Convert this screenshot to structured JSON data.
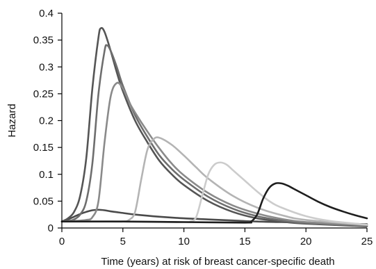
{
  "chart_data": {
    "type": "line",
    "title": "",
    "xlabel": "Time (years) at risk of breast cancer-specific death",
    "ylabel": "Hazard",
    "xlim": [
      0,
      25
    ],
    "ylim": [
      0,
      0.4
    ],
    "x_ticks": [
      {
        "value": 0,
        "label": "0"
      },
      {
        "value": 5,
        "label": "5"
      },
      {
        "value": 10,
        "label": "10"
      },
      {
        "value": 15,
        "label": "15"
      },
      {
        "value": 20,
        "label": "20"
      },
      {
        "value": 25,
        "label": "25"
      }
    ],
    "y_ticks": [
      {
        "value": 0,
        "label": "0"
      },
      {
        "value": 0.05,
        "label": "0.05"
      },
      {
        "value": 0.1,
        "label": "0.1"
      },
      {
        "value": 0.15,
        "label": "0.15"
      },
      {
        "value": 0.2,
        "label": "0.2"
      },
      {
        "value": 0.25,
        "label": "0.25"
      },
      {
        "value": 0.3,
        "label": "0.3"
      },
      {
        "value": 0.35,
        "label": "0.35"
      },
      {
        "value": 0.4,
        "label": "0.4"
      }
    ],
    "grid": false,
    "legend": "none",
    "series": [
      {
        "color": "#4a4a4a",
        "x": [
          0,
          0.5,
          1,
          1.5,
          2,
          2.5,
          3,
          3.5,
          4,
          5,
          6,
          8,
          10,
          12,
          14,
          16,
          18,
          20,
          22,
          25
        ],
        "y": [
          0.012,
          0.016,
          0.021,
          0.026,
          0.03,
          0.033,
          0.034,
          0.033,
          0.031,
          0.028,
          0.025,
          0.021,
          0.018,
          0.016,
          0.014,
          0.012,
          0.011,
          0.01,
          0.009,
          0.007
        ]
      },
      {
        "color": "#555555",
        "x": [
          0,
          0.5,
          1,
          1.5,
          2,
          2.5,
          3,
          3.2,
          3.5,
          4,
          4.5,
          5,
          6,
          7,
          8,
          9,
          10,
          12,
          14,
          16,
          18,
          20,
          25
        ],
        "y": [
          0.012,
          0.018,
          0.03,
          0.06,
          0.13,
          0.26,
          0.355,
          0.372,
          0.365,
          0.33,
          0.29,
          0.255,
          0.2,
          0.16,
          0.125,
          0.1,
          0.08,
          0.05,
          0.03,
          0.018,
          0.012,
          0.008,
          0.003
        ]
      },
      {
        "color": "#6e6e6e",
        "x": [
          0,
          0.5,
          1,
          1.5,
          2,
          2.5,
          3,
          3.5,
          3.7,
          4,
          4.5,
          5,
          6,
          7,
          8,
          9,
          10,
          12,
          14,
          16,
          18,
          20,
          25
        ],
        "y": [
          0.012,
          0.013,
          0.016,
          0.025,
          0.05,
          0.12,
          0.25,
          0.33,
          0.34,
          0.33,
          0.3,
          0.265,
          0.21,
          0.17,
          0.135,
          0.11,
          0.09,
          0.058,
          0.036,
          0.022,
          0.014,
          0.009,
          0.004
        ]
      },
      {
        "color": "#8a8a8a",
        "x": [
          0,
          1,
          2,
          2.5,
          3,
          3.5,
          4,
          4.5,
          5,
          5.5,
          6,
          7,
          8,
          9,
          10,
          12,
          14,
          16,
          18,
          20,
          25
        ],
        "y": [
          0.012,
          0.013,
          0.015,
          0.02,
          0.05,
          0.16,
          0.245,
          0.27,
          0.26,
          0.235,
          0.215,
          0.18,
          0.148,
          0.12,
          0.098,
          0.065,
          0.042,
          0.027,
          0.017,
          0.011,
          0.005
        ]
      },
      {
        "color": "#b4b4b4",
        "x": [
          0,
          2,
          4,
          5,
          5.5,
          6,
          6.5,
          7,
          7.5,
          8,
          9,
          10,
          11,
          12,
          14,
          16,
          18,
          20,
          25
        ],
        "y": [
          0.012,
          0.012,
          0.012,
          0.012,
          0.015,
          0.03,
          0.09,
          0.145,
          0.165,
          0.168,
          0.155,
          0.135,
          0.113,
          0.092,
          0.06,
          0.038,
          0.024,
          0.015,
          0.006
        ]
      },
      {
        "color": "#cccccc",
        "x": [
          0,
          5,
          10,
          10.5,
          11,
          11.5,
          12,
          12.5,
          13,
          13.5,
          14,
          15,
          16,
          17,
          18,
          20,
          22,
          25
        ],
        "y": [
          0.012,
          0.012,
          0.011,
          0.012,
          0.02,
          0.06,
          0.1,
          0.118,
          0.122,
          0.118,
          0.108,
          0.088,
          0.068,
          0.05,
          0.038,
          0.022,
          0.013,
          0.006
        ]
      },
      {
        "color": "#1e1e1e",
        "x": [
          0,
          5,
          10,
          15,
          15.5,
          16,
          16.5,
          17,
          17.5,
          18,
          18.5,
          19,
          20,
          21,
          22,
          23,
          24,
          25
        ],
        "y": [
          0.012,
          0.012,
          0.011,
          0.01,
          0.012,
          0.025,
          0.055,
          0.075,
          0.083,
          0.083,
          0.079,
          0.073,
          0.061,
          0.049,
          0.039,
          0.031,
          0.024,
          0.018
        ]
      }
    ]
  }
}
